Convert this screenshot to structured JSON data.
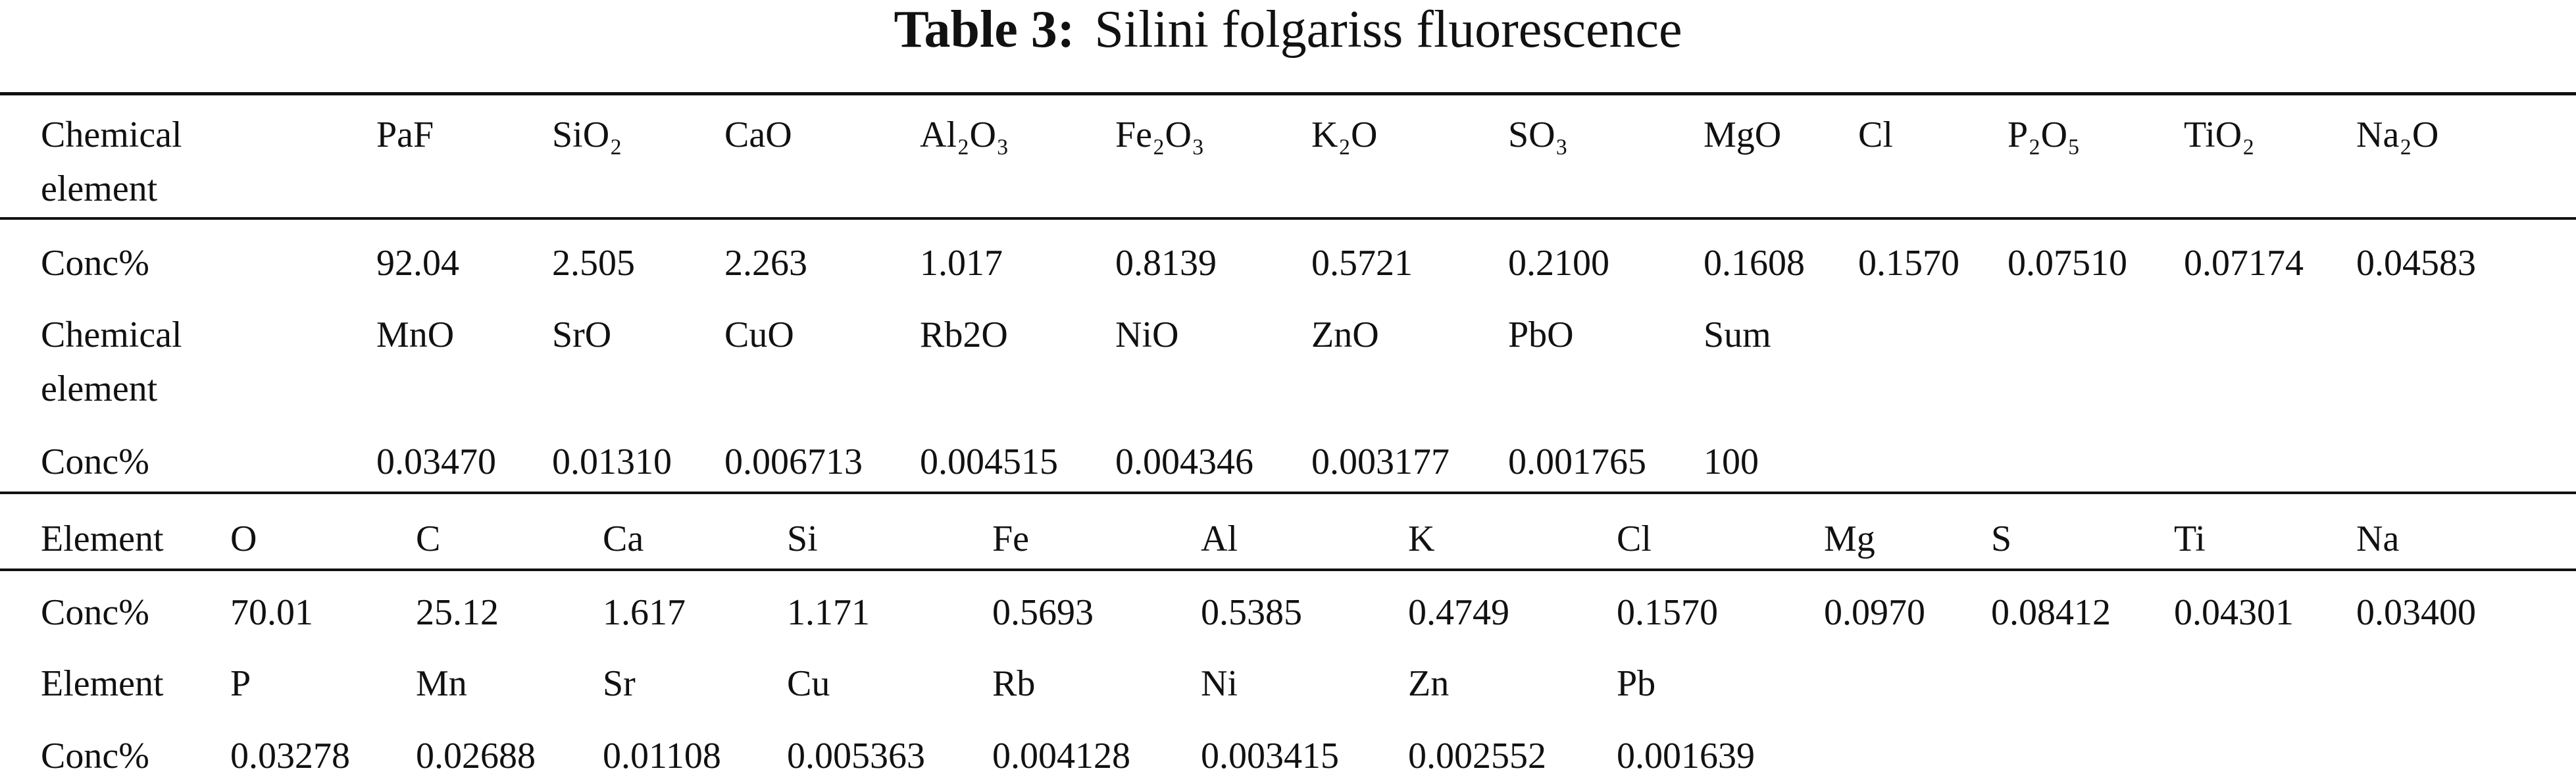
{
  "title": {
    "label": "Table 3:",
    "text": "Silini folgariss fluorescence"
  },
  "tables": [
    {
      "rows": [
        [
          "Chemical element",
          "PaF",
          "SiO₂",
          "CaO",
          "Al₂O₃",
          "Fe₂O₃",
          "K₂O",
          "SO₃",
          "MgO",
          "Cl",
          "P₂O₅",
          "TiO₂",
          "Na₂O"
        ],
        [
          "Conc%",
          "92.04",
          "2.505",
          "2.263",
          "1.017",
          "0.8139",
          "0.5721",
          "0.2100",
          "0.1608",
          "0.1570",
          "0.07510",
          "0.07174",
          "0.04583"
        ],
        [
          "Chemical element",
          "MnO",
          "SrO",
          "CuO",
          "Rb2O",
          "NiO",
          "ZnO",
          "PbO",
          "Sum"
        ],
        [
          "Conc%",
          "0.03470",
          "0.01310",
          "0.006713",
          "0.004515",
          "0.004346",
          "0.003177",
          "0.001765",
          "100"
        ]
      ]
    },
    {
      "rows": [
        [
          "Element",
          "O",
          "C",
          "Ca",
          "Si",
          "Fe",
          "Al",
          "K",
          "Cl",
          "Mg",
          "S",
          "Ti",
          "Na"
        ],
        [
          "Conc%",
          "70.01",
          "25.12",
          "1.617",
          "1.171",
          "0.5693",
          "0.5385",
          "0.4749",
          "0.1570",
          "0.0970",
          "0.08412",
          "0.04301",
          "0.03400"
        ],
        [
          "Element",
          "P",
          "Mn",
          "Sr",
          "Cu",
          "Rb",
          "Ni",
          "Zn",
          "Pb"
        ],
        [
          "Conc%",
          "0.03278",
          "0.02688",
          "0.01108",
          "0.005363",
          "0.004128",
          "0.003415",
          "0.002552",
          "0.001639"
        ]
      ]
    }
  ]
}
